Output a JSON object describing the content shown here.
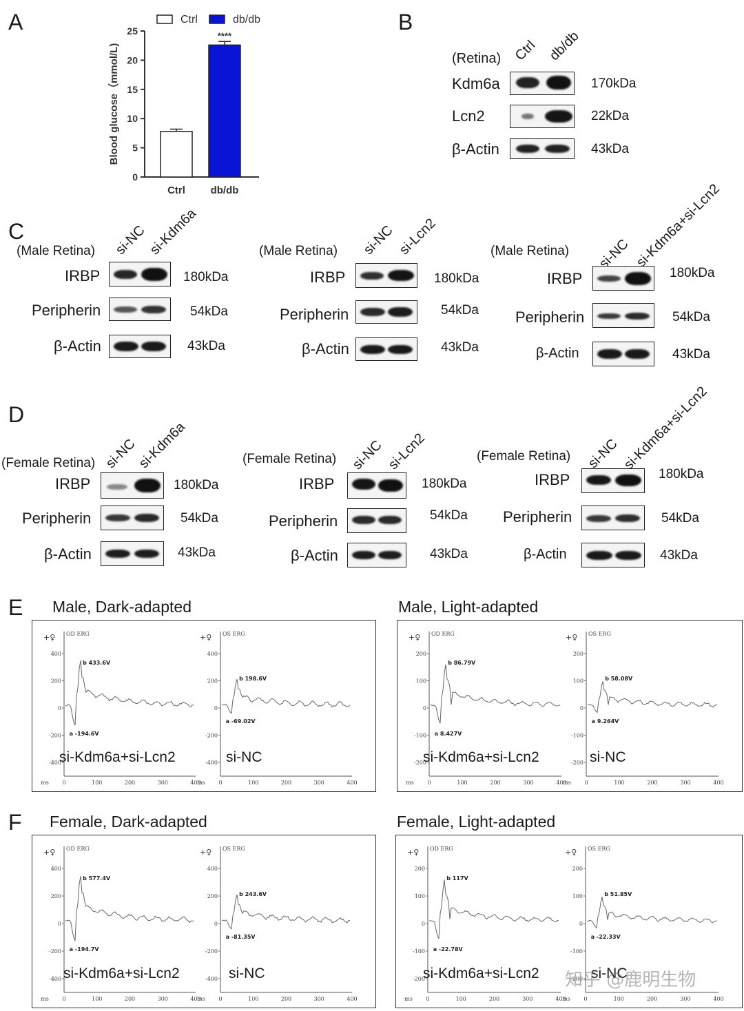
{
  "panels": {
    "A": "A",
    "B": "B",
    "C": "C",
    "D": "D",
    "E": "E",
    "F": "F"
  },
  "chart_data": {
    "type": "bar",
    "categories": [
      "Ctrl",
      "db/db"
    ],
    "values": [
      7.8,
      22.6
    ],
    "errors": [
      0.4,
      0.6
    ],
    "ylabel": "Blood glucose（mmol/L)",
    "ylim": [
      0,
      25
    ],
    "yticks": [
      "0",
      "5",
      "10",
      "15",
      "20",
      "25"
    ],
    "legend": [
      "Ctrl",
      "db/db"
    ],
    "significance": "****",
    "colors": {
      "Ctrl": "#ffffff",
      "db/db": "#0a14d6"
    }
  },
  "panelB": {
    "tissue": "(Retina)",
    "lanes": [
      "Ctrl",
      "db/db"
    ],
    "rows": [
      {
        "protein": "Kdm6a",
        "size": "170kDa"
      },
      {
        "protein": "Lcn2",
        "size": "22kDa"
      },
      {
        "protein": "β-Actin",
        "size": "43kDa"
      }
    ]
  },
  "panelC": [
    {
      "tissue": "(Male Retina)",
      "lanes": [
        "si-NC",
        "si-Kdm6a"
      ],
      "rows": [
        {
          "protein": "IRBP",
          "size": "180kDa"
        },
        {
          "protein": "Peripherin",
          "size": "54kDa"
        },
        {
          "protein": "β-Actin",
          "size": "43kDa"
        }
      ]
    },
    {
      "tissue": "(Male Retina)",
      "lanes": [
        "si-NC",
        "si-Lcn2"
      ],
      "rows": [
        {
          "protein": "IRBP",
          "size": "180kDa"
        },
        {
          "protein": "Peripherin",
          "size": "54kDa"
        },
        {
          "protein": "β-Actin",
          "size": "43kDa"
        }
      ]
    },
    {
      "tissue": "(Male Retina)",
      "lanes": [
        "si-NC",
        "si-Kdm6a+si-Lcn2"
      ],
      "rows": [
        {
          "protein": "IRBP",
          "size": "180kDa"
        },
        {
          "protein": "Peripherin",
          "size": "54kDa"
        },
        {
          "protein": "β-Actin",
          "size": "43kDa"
        }
      ]
    }
  ],
  "panelD": [
    {
      "tissue": "(Female Retina)",
      "lanes": [
        "si-NC",
        "si-Kdm6a"
      ],
      "rows": [
        {
          "protein": "IRBP",
          "size": "180kDa"
        },
        {
          "protein": "Peripherin",
          "size": "54kDa"
        },
        {
          "protein": "β-Actin",
          "size": "43kDa"
        }
      ]
    },
    {
      "tissue": "(Female Retina)",
      "lanes": [
        "si-NC",
        "si-Lcn2"
      ],
      "rows": [
        {
          "protein": "IRBP",
          "size": "180kDa"
        },
        {
          "protein": "Peripherin",
          "size": "54kDa"
        },
        {
          "protein": "β-Actin",
          "size": "43kDa"
        }
      ]
    },
    {
      "tissue": "(Female Retina)",
      "lanes": [
        "si-NC",
        "si-Kdm6a+si-Lcn2"
      ],
      "rows": [
        {
          "protein": "IRBP",
          "size": "180kDa"
        },
        {
          "protein": "Peripherin",
          "size": "54kDa"
        },
        {
          "protein": "β-Actin",
          "size": "43kDa"
        }
      ]
    }
  ],
  "erg": {
    "E_left": {
      "title": "Male, Dark-adapted",
      "caption_left": "si-Kdm6a+si-Lcn2",
      "caption_right": "si-NC",
      "left": {
        "tag": "OD ERG",
        "b": "433.6V",
        "a": "-194.6V"
      },
      "right": {
        "tag": "OS ERG",
        "b": "198.6V",
        "a": "-69.02V"
      },
      "yticks": [
        "400",
        "200",
        "0",
        "-200",
        "-400"
      ]
    },
    "E_right": {
      "title": "Male, Light-adapted",
      "caption_left": "si-Kdm6a+si-Lcn2",
      "caption_right": "si-NC",
      "left": {
        "tag": "OD ERG",
        "b": "86.79V",
        "a": "8.427V"
      },
      "right": {
        "tag": "OS ERG",
        "b": "58.08V",
        "a": "9.264V"
      },
      "yticks": [
        "200",
        "100",
        "0",
        "-100",
        "-200"
      ]
    },
    "F_left": {
      "title": "Female, Dark-adapted",
      "caption_left": "si-Kdm6a+si-Lcn2",
      "caption_right": "si-NC",
      "left": {
        "tag": "OD ERG",
        "b": "577.4V",
        "a": "-194.7V"
      },
      "right": {
        "tag": "OS ERG",
        "b": "243.6V",
        "a": "-81.35V"
      },
      "yticks": [
        "400",
        "200",
        "0",
        "-200",
        "-400"
      ]
    },
    "F_right": {
      "title": "Female, Light-adapted",
      "caption_left": "si-Kdm6a+si-Lcn2",
      "caption_right": "si-NC",
      "left": {
        "tag": "OD ERG",
        "b": "117V",
        "a": "-22.78V"
      },
      "right": {
        "tag": "OS ERG",
        "b": "51.85V",
        "a": "-22.33V"
      },
      "yticks": [
        "200",
        "100",
        "0",
        "-100",
        "-200"
      ]
    },
    "xticks": [
      "ms",
      "0",
      "100",
      "200",
      "300",
      "400"
    ]
  },
  "watermark": "知乎 @鹿明生物"
}
